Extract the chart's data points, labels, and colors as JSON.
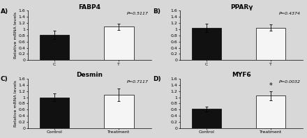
{
  "panels": [
    {
      "label": "A)",
      "title": "FABP4",
      "pvalue": "P=0.5117",
      "control_mean": 0.82,
      "treatment_mean": 1.08,
      "control_sem": 0.13,
      "treatment_sem": 0.1,
      "xtick_labels": [
        "C",
        "T"
      ],
      "ylim": [
        0,
        1.6
      ],
      "yticks": [
        0.0,
        0.2,
        0.4,
        0.6,
        0.8,
        1.0,
        1.2,
        1.4,
        1.6
      ],
      "significant": false
    },
    {
      "label": "B)",
      "title": "PPARγ",
      "pvalue": "P=0.4374",
      "control_mean": 1.05,
      "treatment_mean": 1.05,
      "control_sem": 0.13,
      "treatment_sem": 0.1,
      "xtick_labels": [
        "C",
        "T"
      ],
      "ylim": [
        0,
        1.6
      ],
      "yticks": [
        0.0,
        0.2,
        0.4,
        0.6,
        0.8,
        1.0,
        1.2,
        1.4,
        1.6
      ],
      "significant": false
    },
    {
      "label": "C)",
      "title": "Desmin",
      "pvalue": "P=0.7117",
      "control_mean": 1.0,
      "treatment_mean": 1.08,
      "control_sem": 0.13,
      "treatment_sem": 0.2,
      "xtick_labels": [
        "Control",
        "Treatment"
      ],
      "ylim": [
        0,
        1.6
      ],
      "yticks": [
        0.0,
        0.2,
        0.4,
        0.6,
        0.8,
        1.0,
        1.2,
        1.4,
        1.6
      ],
      "significant": false
    },
    {
      "label": "D)",
      "title": "MYF6",
      "pvalue": "P=0.0032",
      "control_mean": 0.62,
      "treatment_mean": 1.05,
      "control_sem": 0.07,
      "treatment_sem": 0.15,
      "xtick_labels": [
        "Control",
        "Treatment"
      ],
      "ylim": [
        0,
        1.6
      ],
      "yticks": [
        0.0,
        0.2,
        0.4,
        0.6,
        0.8,
        1.0,
        1.2,
        1.4,
        1.6
      ],
      "significant": true
    }
  ],
  "ylabel": "Relative mRNA levels",
  "bar_width": 0.55,
  "control_color": "#111111",
  "treatment_color": "#f5f5f5",
  "background_color": "#d8d8d8",
  "title_fontsize": 6.5,
  "label_fontsize": 6.5,
  "tick_fontsize": 4.5,
  "pval_fontsize": 4.5,
  "ylabel_fontsize": 4.5,
  "star_fontsize": 7
}
